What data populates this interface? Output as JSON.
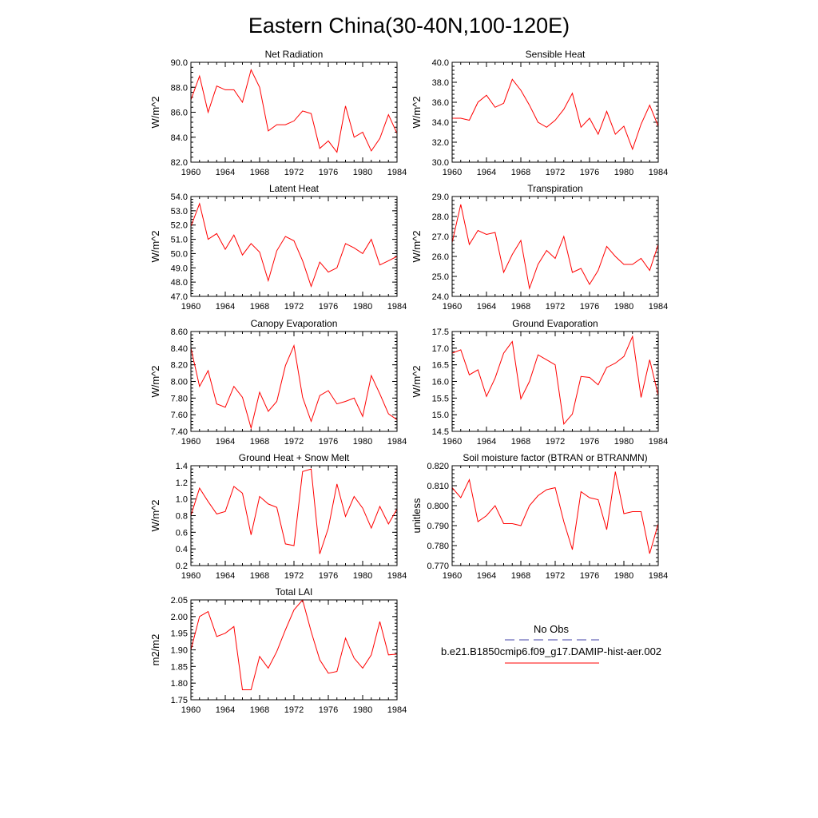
{
  "title": "Eastern China(30-40N,100-120E)",
  "legend": {
    "obs_label": "No Obs",
    "obs_color": "#4444aa",
    "model_label": "b.e21.B1850cmip6.f09_g17.DAMIP-hist-aer.002",
    "model_color": "#ff0000"
  },
  "chart_data": [
    {
      "type": "line",
      "title": "Net Radiation",
      "ylabel": "W/m^2",
      "xlim": [
        1960,
        1984
      ],
      "ylim": [
        82.0,
        90.0
      ],
      "xticks": [
        "1960",
        "1964",
        "1968",
        "1972",
        "1976",
        "1980",
        "1984"
      ],
      "yticks": [
        "82.0",
        "84.0",
        "86.0",
        "88.0",
        "90.0"
      ],
      "x": [
        1960,
        1961,
        1962,
        1963,
        1964,
        1965,
        1966,
        1967,
        1968,
        1969,
        1970,
        1971,
        1972,
        1973,
        1974,
        1975,
        1976,
        1977,
        1978,
        1979,
        1980,
        1981,
        1982,
        1983,
        1984
      ],
      "series": [
        {
          "values": [
            87.0,
            88.9,
            86.0,
            88.1,
            87.8,
            87.8,
            86.8,
            89.4,
            88.0,
            84.5,
            85.0,
            85.0,
            85.3,
            86.1,
            85.9,
            83.1,
            83.7,
            82.8,
            86.5,
            84.0,
            84.4,
            82.9,
            83.9,
            85.8,
            84.3
          ]
        }
      ]
    },
    {
      "type": "line",
      "title": "Sensible Heat",
      "ylabel": "W/m^2",
      "xlim": [
        1960,
        1984
      ],
      "ylim": [
        30.0,
        40.0
      ],
      "xticks": [
        "1960",
        "1964",
        "1968",
        "1972",
        "1976",
        "1980",
        "1984"
      ],
      "yticks": [
        "30.0",
        "32.0",
        "34.0",
        "36.0",
        "38.0",
        "40.0"
      ],
      "x": [
        1960,
        1961,
        1962,
        1963,
        1964,
        1965,
        1966,
        1967,
        1968,
        1969,
        1970,
        1971,
        1972,
        1973,
        1974,
        1975,
        1976,
        1977,
        1978,
        1979,
        1980,
        1981,
        1982,
        1983,
        1984
      ],
      "series": [
        {
          "values": [
            34.4,
            34.4,
            34.2,
            36.0,
            36.7,
            35.5,
            35.9,
            38.3,
            37.2,
            35.7,
            34.0,
            33.5,
            34.2,
            35.3,
            36.9,
            33.5,
            34.4,
            32.8,
            35.1,
            32.8,
            33.6,
            31.3,
            33.8,
            35.7,
            33.6
          ]
        }
      ]
    },
    {
      "type": "line",
      "title": "Latent Heat",
      "ylabel": "W/m^2",
      "xlim": [
        1960,
        1984
      ],
      "ylim": [
        47.0,
        54.0
      ],
      "xticks": [
        "1960",
        "1964",
        "1968",
        "1972",
        "1976",
        "1980",
        "1984"
      ],
      "yticks": [
        "47.0",
        "48.0",
        "49.0",
        "50.0",
        "51.0",
        "52.0",
        "53.0",
        "54.0"
      ],
      "x": [
        1960,
        1961,
        1962,
        1963,
        1964,
        1965,
        1966,
        1967,
        1968,
        1969,
        1970,
        1971,
        1972,
        1973,
        1974,
        1975,
        1976,
        1977,
        1978,
        1979,
        1980,
        1981,
        1982,
        1983,
        1984
      ],
      "series": [
        {
          "values": [
            51.9,
            53.5,
            51.0,
            51.4,
            50.3,
            51.3,
            49.9,
            50.7,
            50.1,
            48.1,
            50.2,
            51.2,
            50.9,
            49.5,
            47.7,
            49.4,
            48.7,
            49.0,
            50.7,
            50.4,
            50.0,
            51.0,
            49.2,
            49.5,
            49.8
          ]
        }
      ]
    },
    {
      "type": "line",
      "title": "Transpiration",
      "ylabel": "W/m^2",
      "xlim": [
        1960,
        1984
      ],
      "ylim": [
        24.0,
        29.0
      ],
      "xticks": [
        "1960",
        "1964",
        "1968",
        "1972",
        "1976",
        "1980",
        "1984"
      ],
      "yticks": [
        "24.0",
        "25.0",
        "26.0",
        "27.0",
        "28.0",
        "29.0"
      ],
      "x": [
        1960,
        1961,
        1962,
        1963,
        1964,
        1965,
        1966,
        1967,
        1968,
        1969,
        1970,
        1971,
        1972,
        1973,
        1974,
        1975,
        1976,
        1977,
        1978,
        1979,
        1980,
        1981,
        1982,
        1983,
        1984
      ],
      "series": [
        {
          "values": [
            26.7,
            28.6,
            26.6,
            27.3,
            27.1,
            27.2,
            25.2,
            26.1,
            26.8,
            24.4,
            25.6,
            26.3,
            25.9,
            27.0,
            25.2,
            25.4,
            24.6,
            25.3,
            26.5,
            26.0,
            25.6,
            25.6,
            25.9,
            25.3,
            26.6
          ]
        }
      ]
    },
    {
      "type": "line",
      "title": "Canopy Evaporation",
      "ylabel": "W/m^2",
      "xlim": [
        1960,
        1984
      ],
      "ylim": [
        7.4,
        8.6
      ],
      "xticks": [
        "1960",
        "1964",
        "1968",
        "1972",
        "1976",
        "1980",
        "1984"
      ],
      "yticks": [
        "7.40",
        "7.60",
        "7.80",
        "8.00",
        "8.20",
        "8.40",
        "8.60"
      ],
      "x": [
        1960,
        1961,
        1962,
        1963,
        1964,
        1965,
        1966,
        1967,
        1968,
        1969,
        1970,
        1971,
        1972,
        1973,
        1974,
        1975,
        1976,
        1977,
        1978,
        1979,
        1980,
        1981,
        1982,
        1983,
        1984
      ],
      "series": [
        {
          "values": [
            8.4,
            7.94,
            8.13,
            7.73,
            7.69,
            7.94,
            7.81,
            7.44,
            7.87,
            7.64,
            7.76,
            8.19,
            8.43,
            7.81,
            7.52,
            7.83,
            7.89,
            7.73,
            7.76,
            7.8,
            7.58,
            8.07,
            7.85,
            7.61,
            7.54
          ]
        }
      ]
    },
    {
      "type": "line",
      "title": "Ground Evaporation",
      "ylabel": "W/m^2",
      "xlim": [
        1960,
        1984
      ],
      "ylim": [
        14.5,
        17.5
      ],
      "xticks": [
        "1960",
        "1964",
        "1968",
        "1972",
        "1976",
        "1980",
        "1984"
      ],
      "yticks": [
        "14.5",
        "15.0",
        "15.5",
        "16.0",
        "16.5",
        "17.0",
        "17.5"
      ],
      "x": [
        1960,
        1961,
        1962,
        1963,
        1964,
        1965,
        1966,
        1967,
        1968,
        1969,
        1970,
        1971,
        1972,
        1973,
        1974,
        1975,
        1976,
        1977,
        1978,
        1979,
        1980,
        1981,
        1982,
        1983,
        1984
      ],
      "series": [
        {
          "values": [
            16.85,
            16.95,
            16.2,
            16.35,
            15.55,
            16.1,
            16.85,
            17.2,
            15.48,
            16.0,
            16.8,
            16.65,
            16.5,
            14.72,
            15.02,
            16.15,
            16.12,
            15.9,
            16.42,
            16.55,
            16.75,
            17.35,
            15.52,
            16.65,
            15.58
          ]
        }
      ]
    },
    {
      "type": "line",
      "title": "Ground Heat + Snow Melt",
      "ylabel": "W/m^2",
      "xlim": [
        1960,
        1984
      ],
      "ylim": [
        0.2,
        1.4
      ],
      "xticks": [
        "1960",
        "1964",
        "1968",
        "1972",
        "1976",
        "1980",
        "1984"
      ],
      "yticks": [
        "0.2",
        "0.4",
        "0.6",
        "0.8",
        "1.0",
        "1.2",
        "1.4"
      ],
      "x": [
        1960,
        1961,
        1962,
        1963,
        1964,
        1965,
        1966,
        1967,
        1968,
        1969,
        1970,
        1971,
        1972,
        1973,
        1974,
        1975,
        1976,
        1977,
        1978,
        1979,
        1980,
        1981,
        1982,
        1983,
        1984
      ],
      "series": [
        {
          "values": [
            0.8,
            1.13,
            0.97,
            0.82,
            0.85,
            1.15,
            1.07,
            0.57,
            1.03,
            0.94,
            0.9,
            0.46,
            0.44,
            1.33,
            1.36,
            0.34,
            0.65,
            1.18,
            0.79,
            1.03,
            0.89,
            0.65,
            0.91,
            0.7,
            0.88
          ]
        }
      ]
    },
    {
      "type": "line",
      "title": "Soil moisture factor (BTRAN or BTRANMN)",
      "ylabel": "unitless",
      "xlim": [
        1960,
        1984
      ],
      "ylim": [
        0.77,
        0.82
      ],
      "xticks": [
        "1960",
        "1964",
        "1968",
        "1972",
        "1976",
        "1980",
        "1984"
      ],
      "yticks": [
        "0.770",
        "0.780",
        "0.790",
        "0.800",
        "0.810",
        "0.820"
      ],
      "x": [
        1960,
        1961,
        1962,
        1963,
        1964,
        1965,
        1966,
        1967,
        1968,
        1969,
        1970,
        1971,
        1972,
        1973,
        1974,
        1975,
        1976,
        1977,
        1978,
        1979,
        1980,
        1981,
        1982,
        1983,
        1984
      ],
      "series": [
        {
          "values": [
            0.809,
            0.804,
            0.813,
            0.792,
            0.795,
            0.8,
            0.791,
            0.791,
            0.79,
            0.8,
            0.805,
            0.808,
            0.809,
            0.792,
            0.778,
            0.807,
            0.804,
            0.803,
            0.788,
            0.817,
            0.796,
            0.797,
            0.797,
            0.776,
            0.791
          ]
        }
      ]
    },
    {
      "type": "line",
      "title": "Total LAI",
      "ylabel": "m2/m2",
      "xlim": [
        1960,
        1984
      ],
      "ylim": [
        1.75,
        2.05
      ],
      "xticks": [
        "1960",
        "1964",
        "1968",
        "1972",
        "1976",
        "1980",
        "1984"
      ],
      "yticks": [
        "1.75",
        "1.80",
        "1.85",
        "1.90",
        "1.95",
        "2.00",
        "2.05"
      ],
      "x": [
        1960,
        1961,
        1962,
        1963,
        1964,
        1965,
        1966,
        1967,
        1968,
        1969,
        1970,
        1971,
        1972,
        1973,
        1974,
        1975,
        1976,
        1977,
        1978,
        1979,
        1980,
        1981,
        1982,
        1983,
        1984
      ],
      "series": [
        {
          "values": [
            1.9,
            2.0,
            2.015,
            1.94,
            1.95,
            1.97,
            1.78,
            1.78,
            1.88,
            1.845,
            1.895,
            1.96,
            2.02,
            2.05,
            1.955,
            1.87,
            1.83,
            1.835,
            1.935,
            1.875,
            1.845,
            1.885,
            1.985,
            1.885,
            1.887
          ]
        }
      ]
    }
  ]
}
